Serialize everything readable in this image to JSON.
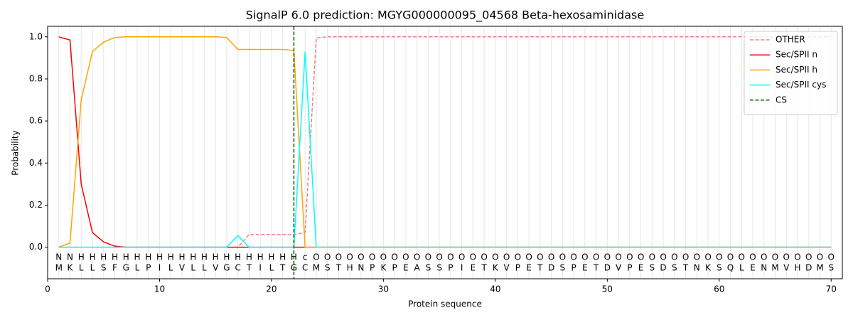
{
  "chart_data": {
    "type": "line",
    "title": "SignalP 6.0 prediction: MGYG000000095_04568 Beta-hexosaminidase",
    "xlabel": "Protein sequence",
    "ylabel": "Probability",
    "x": [
      1,
      2,
      3,
      4,
      5,
      6,
      7,
      8,
      9,
      10,
      11,
      12,
      13,
      14,
      15,
      16,
      17,
      18,
      19,
      20,
      21,
      22,
      23,
      24,
      25,
      26,
      27,
      28,
      29,
      30,
      31,
      32,
      33,
      34,
      35,
      36,
      37,
      38,
      39,
      40,
      41,
      42,
      43,
      44,
      45,
      46,
      47,
      48,
      49,
      50,
      51,
      52,
      53,
      54,
      55,
      56,
      57,
      58,
      59,
      60,
      61,
      62,
      63,
      64,
      65,
      66,
      67,
      68,
      69,
      70
    ],
    "residues": [
      "M",
      "K",
      "L",
      "L",
      "S",
      "F",
      "G",
      "L",
      "P",
      "I",
      "L",
      "V",
      "L",
      "L",
      "V",
      "G",
      "C",
      "T",
      "I",
      "L",
      "T",
      "G",
      "C",
      "M",
      "S",
      "T",
      "H",
      "N",
      "P",
      "K",
      "P",
      "E",
      "A",
      "S",
      "S",
      "P",
      "I",
      "E",
      "T",
      "K",
      "V",
      "P",
      "E",
      "T",
      "D",
      "S",
      "P",
      "E",
      "T",
      "D",
      "V",
      "P",
      "E",
      "S",
      "D",
      "S",
      "T",
      "N",
      "K",
      "S",
      "Q",
      "L",
      "E",
      "N",
      "M",
      "V",
      "H",
      "D",
      "M",
      "S"
    ],
    "region_labels": [
      "N",
      "N",
      "H",
      "H",
      "H",
      "H",
      "H",
      "H",
      "H",
      "H",
      "H",
      "H",
      "H",
      "H",
      "H",
      "H",
      "H",
      "H",
      "H",
      "H",
      "H",
      "H",
      "c",
      "O",
      "O",
      "O",
      "O",
      "O",
      "O",
      "O",
      "O",
      "O",
      "O",
      "O",
      "O",
      "O",
      "O",
      "O",
      "O",
      "O",
      "O",
      "O",
      "O",
      "O",
      "O",
      "O",
      "O",
      "O",
      "O",
      "O",
      "O",
      "O",
      "O",
      "O",
      "O",
      "O",
      "O",
      "O",
      "O",
      "O",
      "O",
      "O",
      "O",
      "O",
      "O",
      "O",
      "O",
      "O",
      "O",
      "O"
    ],
    "region_colors": {
      "N": "#ff0000",
      "H": "#ffa500",
      "c": "#00ffff",
      "O": "#808080"
    },
    "series": [
      {
        "name": "OTHER",
        "color": "#f08080",
        "dashed": true,
        "values": [
          0,
          0,
          0,
          0,
          0,
          0,
          0,
          0,
          0,
          0,
          0,
          0,
          0,
          0,
          0,
          0,
          0,
          0.06,
          0.06,
          0.06,
          0.06,
          0.06,
          0.07,
          0.995,
          1,
          1,
          1,
          1,
          1,
          1,
          1,
          1,
          1,
          1,
          1,
          1,
          1,
          1,
          1,
          1,
          1,
          1,
          1,
          1,
          1,
          1,
          1,
          1,
          1,
          1,
          1,
          1,
          1,
          1,
          1,
          1,
          1,
          1,
          1,
          1,
          1,
          1,
          1,
          1,
          1,
          1,
          1,
          1,
          1,
          1
        ]
      },
      {
        "name": "Sec/SPII n",
        "color": "#ff0000",
        "values": [
          1,
          0.985,
          0.3,
          0.07,
          0.025,
          0.005,
          0,
          0,
          0,
          0,
          0,
          0,
          0,
          0,
          0,
          0,
          0,
          0,
          0,
          0,
          0,
          0,
          0,
          0,
          0,
          0,
          0,
          0,
          0,
          0,
          0,
          0,
          0,
          0,
          0,
          0,
          0,
          0,
          0,
          0,
          0,
          0,
          0,
          0,
          0,
          0,
          0,
          0,
          0,
          0,
          0,
          0,
          0,
          0,
          0,
          0,
          0,
          0,
          0,
          0,
          0,
          0,
          0,
          0,
          0,
          0,
          0,
          0,
          0,
          0
        ]
      },
      {
        "name": "Sec/SPII h",
        "color": "#ffa500",
        "values": [
          0,
          0.02,
          0.7,
          0.93,
          0.975,
          0.997,
          1,
          1,
          1,
          1,
          1,
          1,
          1,
          1,
          1,
          0.997,
          0.94,
          0.94,
          0.94,
          0.94,
          0.94,
          0.935,
          0,
          0,
          0,
          0,
          0,
          0,
          0,
          0,
          0,
          0,
          0,
          0,
          0,
          0,
          0,
          0,
          0,
          0,
          0,
          0,
          0,
          0,
          0,
          0,
          0,
          0,
          0,
          0,
          0,
          0,
          0,
          0,
          0,
          0,
          0,
          0,
          0,
          0,
          0,
          0,
          0,
          0,
          0,
          0,
          0,
          0,
          0,
          0
        ]
      },
      {
        "name": "Sec/SPII cys",
        "color": "#00ffff",
        "values": [
          0,
          0,
          0,
          0,
          0,
          0,
          0,
          0,
          0,
          0,
          0,
          0,
          0,
          0,
          0,
          0,
          0.055,
          0,
          0,
          0,
          0,
          0,
          0.93,
          0,
          0,
          0,
          0,
          0,
          0,
          0,
          0,
          0,
          0,
          0,
          0,
          0,
          0,
          0,
          0,
          0,
          0,
          0,
          0,
          0,
          0,
          0,
          0,
          0,
          0,
          0,
          0,
          0,
          0,
          0,
          0,
          0,
          0,
          0,
          0,
          0,
          0,
          0,
          0,
          0,
          0,
          0,
          0,
          0,
          0,
          0
        ]
      }
    ],
    "cs": {
      "name": "CS",
      "x": 22,
      "color": "#006400"
    },
    "xlim": [
      0,
      71
    ],
    "ylim": [
      -0.15,
      1.05
    ],
    "xticks": [
      0,
      10,
      20,
      30,
      40,
      50,
      60,
      70
    ],
    "yticks": [
      {
        "value": 0,
        "label": "0.0"
      },
      {
        "value": 0.2,
        "label": "0.2"
      },
      {
        "value": 0.4,
        "label": "0.4"
      },
      {
        "value": 0.6,
        "label": "0.6"
      },
      {
        "value": 0.8,
        "label": "0.8"
      },
      {
        "value": 1,
        "label": "1.0"
      }
    ],
    "legend": "upper right"
  }
}
